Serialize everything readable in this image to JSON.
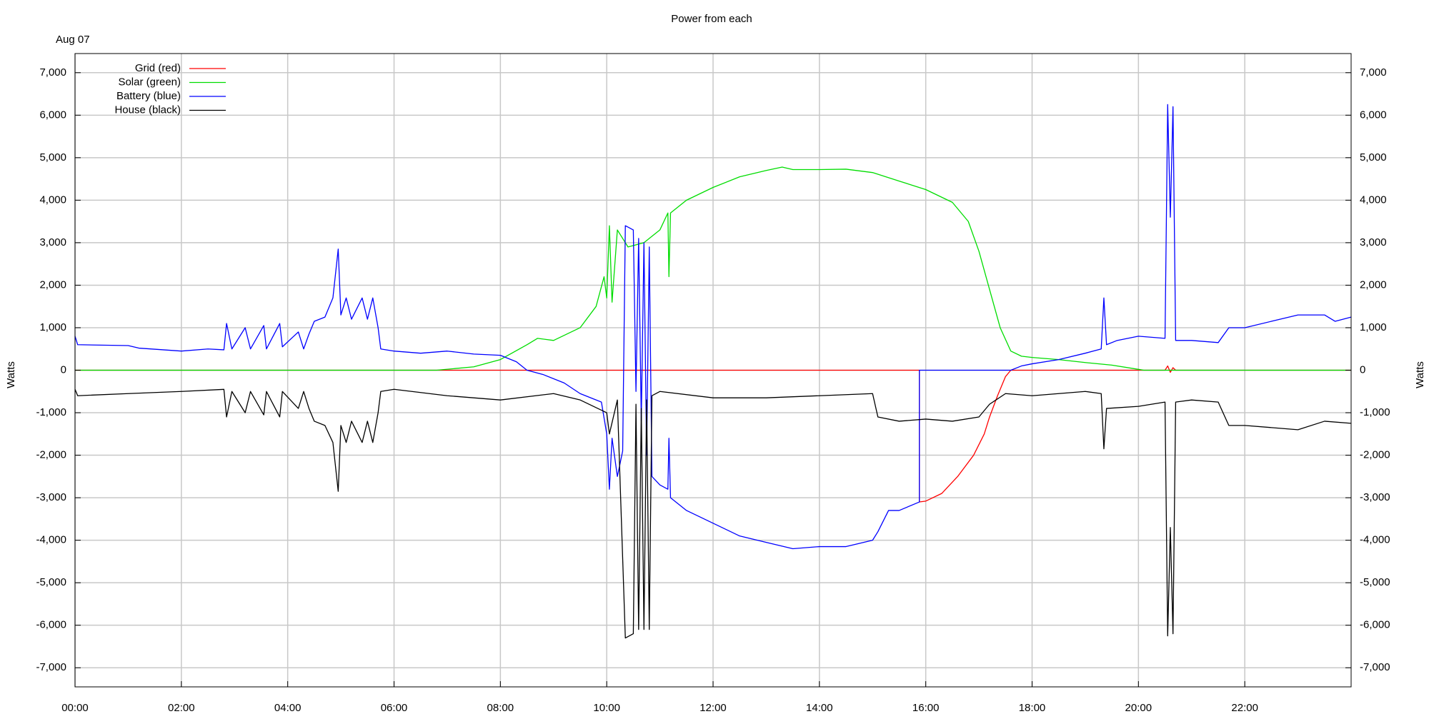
{
  "chart_data": {
    "type": "line",
    "title": "Power from each",
    "annotation": "Aug 07",
    "ylabel": "Watts",
    "y2label": "Watts",
    "legend": "top-left",
    "grid": true,
    "xlim": [
      0,
      24
    ],
    "xticks": [
      {
        "value": 0,
        "label": "00:00"
      },
      {
        "value": 2,
        "label": "02:00"
      },
      {
        "value": 4,
        "label": "04:00"
      },
      {
        "value": 6,
        "label": "06:00"
      },
      {
        "value": 8,
        "label": "08:00"
      },
      {
        "value": 10,
        "label": "10:00"
      },
      {
        "value": 12,
        "label": "12:00"
      },
      {
        "value": 14,
        "label": "14:00"
      },
      {
        "value": 16,
        "label": "16:00"
      },
      {
        "value": 18,
        "label": "18:00"
      },
      {
        "value": 20,
        "label": "20:00"
      },
      {
        "value": 22,
        "label": "22:00"
      }
    ],
    "ylim": [
      -7450,
      7450
    ],
    "yticks": [
      {
        "value": -7000,
        "label": "-7,000"
      },
      {
        "value": -6000,
        "label": "-6,000"
      },
      {
        "value": -5000,
        "label": "-5,000"
      },
      {
        "value": -4000,
        "label": "-4,000"
      },
      {
        "value": -3000,
        "label": "-3,000"
      },
      {
        "value": -2000,
        "label": "-2,000"
      },
      {
        "value": -1000,
        "label": "-1,000"
      },
      0,
      {
        "value": 1000,
        "label": "1,000"
      },
      {
        "value": 2000,
        "label": "2,000"
      },
      {
        "value": 3000,
        "label": "3,000"
      },
      {
        "value": 4000,
        "label": "4,000"
      },
      {
        "value": 5000,
        "label": "5,000"
      },
      {
        "value": 6000,
        "label": "6,000"
      },
      {
        "value": 7000,
        "label": "7,000"
      }
    ],
    "y2lim": [
      -7450,
      7450
    ],
    "y2ticks": [
      {
        "value": -7000,
        "label": "-7,000"
      },
      {
        "value": -6000,
        "label": "-6,000"
      },
      {
        "value": -5000,
        "label": "-5,000"
      },
      {
        "value": -4000,
        "label": "-4,000"
      },
      {
        "value": -3000,
        "label": "-3,000"
      },
      {
        "value": -2000,
        "label": "-2,000"
      },
      {
        "value": -1000,
        "label": "-1,000"
      },
      0,
      {
        "value": 1000,
        "label": "1,000"
      },
      {
        "value": 2000,
        "label": "2,000"
      },
      {
        "value": 3000,
        "label": "3,000"
      },
      {
        "value": 4000,
        "label": "4,000"
      },
      {
        "value": 5000,
        "label": "5,000"
      },
      {
        "value": 6000,
        "label": "6,000"
      },
      {
        "value": 7000,
        "label": "7,000"
      }
    ],
    "series": [
      {
        "name": "Grid (red)",
        "color": "#ff0000",
        "x": [
          0,
          15.88,
          15.88,
          16,
          16.3,
          16.6,
          16.9,
          17.1,
          17.2,
          17.35,
          17.5,
          17.6,
          20.5,
          20.55,
          20.6,
          20.65,
          20.7,
          24
        ],
        "values": [
          0,
          0,
          -3100,
          -3080,
          -2900,
          -2500,
          -2000,
          -1500,
          -1100,
          -600,
          -150,
          0,
          0,
          100,
          -50,
          60,
          0,
          0
        ]
      },
      {
        "name": "Solar (green)",
        "color": "#00dd00",
        "x": [
          0,
          6.8,
          7.5,
          8,
          8.5,
          8.7,
          9,
          9.5,
          9.8,
          9.95,
          10,
          10.05,
          10.1,
          10.2,
          10.4,
          10.7,
          11,
          11.15,
          11.17,
          11.2,
          11.5,
          12,
          12.5,
          13,
          13.3,
          13.5,
          14,
          14.5,
          15,
          15.5,
          16,
          16.5,
          16.8,
          17,
          17.2,
          17.4,
          17.6,
          17.8,
          18,
          18.5,
          19,
          19.5,
          20,
          20.1,
          24
        ],
        "values": [
          0,
          0,
          80,
          250,
          600,
          750,
          700,
          1000,
          1500,
          2200,
          1700,
          3400,
          1600,
          3300,
          2900,
          3000,
          3300,
          3700,
          2200,
          3700,
          4000,
          4300,
          4550,
          4700,
          4780,
          4720,
          4720,
          4730,
          4650,
          4450,
          4250,
          3950,
          3500,
          2800,
          1900,
          1000,
          450,
          330,
          300,
          250,
          180,
          120,
          20,
          0,
          0
        ]
      },
      {
        "name": "Battery (blue)",
        "color": "#0000ff",
        "x": [
          0,
          0.05,
          1,
          1.2,
          2,
          2.5,
          2.8,
          2.85,
          2.95,
          3.2,
          3.3,
          3.55,
          3.6,
          3.85,
          3.9,
          4.2,
          4.3,
          4.4,
          4.5,
          4.7,
          4.85,
          4.95,
          5,
          5.1,
          5.2,
          5.4,
          5.5,
          5.6,
          5.7,
          5.75,
          6,
          6.5,
          7,
          7.5,
          8,
          8.3,
          8.5,
          8.8,
          9.2,
          9.5,
          9.9,
          10,
          10.05,
          10.1,
          10.2,
          10.3,
          10.35,
          10.5,
          10.55,
          10.6,
          10.65,
          10.7,
          10.75,
          10.8,
          10.85,
          11,
          11.15,
          11.17,
          11.2,
          11.5,
          12,
          12.5,
          13,
          13.5,
          14,
          14.5,
          15,
          15.1,
          15.3,
          15.5,
          15.88,
          15.88,
          17.6,
          17.8,
          18,
          18.5,
          19,
          19.3,
          19.35,
          19.4,
          19.6,
          20,
          20.5,
          20.55,
          20.6,
          20.65,
          20.7,
          21,
          21.5,
          21.7,
          22,
          22.5,
          23,
          23.5,
          23.7,
          24
        ],
        "values": [
          800,
          600,
          580,
          520,
          450,
          500,
          480,
          1100,
          500,
          1000,
          500,
          1050,
          500,
          1100,
          550,
          900,
          500,
          850,
          1150,
          1250,
          1700,
          2850,
          1300,
          1700,
          1200,
          1700,
          1200,
          1700,
          1000,
          500,
          450,
          400,
          450,
          380,
          350,
          200,
          0,
          -100,
          -300,
          -550,
          -750,
          -1500,
          -2800,
          -1600,
          -2500,
          -1900,
          3400,
          3300,
          -500,
          3100,
          -1200,
          3000,
          -2000,
          2900,
          -2500,
          -2700,
          -2800,
          -1600,
          -3000,
          -3300,
          -3600,
          -3900,
          -4050,
          -4200,
          -4150,
          -4150,
          -4000,
          -3800,
          -3300,
          -3300,
          -3100,
          0,
          0,
          100,
          150,
          250,
          400,
          500,
          1700,
          600,
          700,
          800,
          750,
          6250,
          3600,
          6200,
          700,
          700,
          650,
          1000,
          1000,
          1150,
          1300,
          1300,
          1150,
          1250
        ]
      },
      {
        "name": "House (black)",
        "color": "#000000",
        "x": [
          0,
          0.05,
          1,
          2,
          2.8,
          2.85,
          2.95,
          3.2,
          3.3,
          3.55,
          3.6,
          3.85,
          3.9,
          4.2,
          4.3,
          4.4,
          4.5,
          4.7,
          4.85,
          4.95,
          5,
          5.1,
          5.2,
          5.4,
          5.5,
          5.6,
          5.7,
          5.75,
          6,
          7,
          8,
          9,
          9.5,
          10,
          10.05,
          10.2,
          10.35,
          10.5,
          10.55,
          10.6,
          10.65,
          10.7,
          10.75,
          10.8,
          10.85,
          11,
          12,
          13,
          14,
          15,
          15.1,
          15.5,
          16,
          16.5,
          17,
          17.2,
          17.5,
          18,
          19,
          19.3,
          19.35,
          19.4,
          20,
          20.5,
          20.55,
          20.6,
          20.65,
          20.7,
          21,
          21.5,
          21.7,
          22,
          23,
          23.5,
          24
        ],
        "values": [
          -450,
          -600,
          -550,
          -500,
          -450,
          -1100,
          -500,
          -1000,
          -500,
          -1050,
          -500,
          -1100,
          -500,
          -900,
          -500,
          -900,
          -1200,
          -1300,
          -1700,
          -2850,
          -1300,
          -1700,
          -1200,
          -1700,
          -1200,
          -1700,
          -1000,
          -500,
          -450,
          -600,
          -700,
          -550,
          -700,
          -1000,
          -1500,
          -700,
          -6300,
          -6200,
          -800,
          -6100,
          -900,
          -6100,
          -700,
          -6100,
          -600,
          -500,
          -650,
          -650,
          -600,
          -550,
          -1100,
          -1200,
          -1150,
          -1200,
          -1100,
          -800,
          -550,
          -600,
          -500,
          -550,
          -1850,
          -900,
          -850,
          -750,
          -6250,
          -3700,
          -6200,
          -750,
          -700,
          -750,
          -1300,
          -1300,
          -1400,
          -1200,
          -1250
        ]
      }
    ]
  }
}
